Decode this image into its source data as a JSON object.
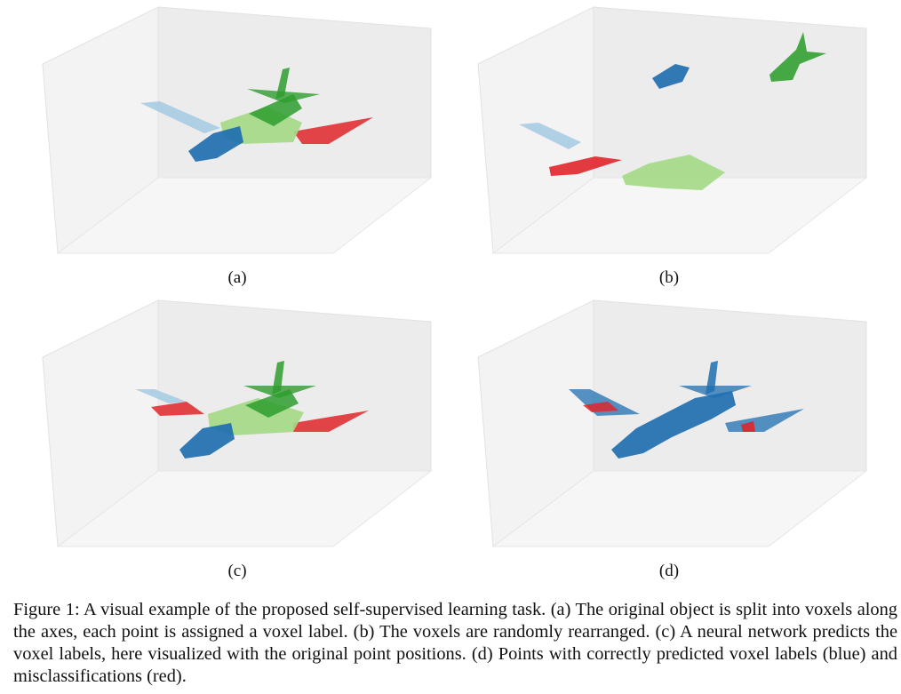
{
  "figure": {
    "panels": [
      {
        "id": "a",
        "label": "(a)",
        "variant": "original"
      },
      {
        "id": "b",
        "label": "(b)",
        "variant": "rearranged"
      },
      {
        "id": "c",
        "label": "(c)",
        "variant": "predicted"
      },
      {
        "id": "d",
        "label": "(d)",
        "variant": "evaluation"
      }
    ],
    "caption": "Figure 1: A visual example of the proposed self-supervised learning task. (a) The original object is split into voxels along the axes, each point is assigned a voxel label. (b) The voxels are randomly rearranged. (c) A neural network predicts the voxel labels, here visualized with the original point positions. (d) Points with correctly predicted voxel labels (blue) and misclassifications (red).",
    "colors": {
      "dark_blue": "#1f6fb0",
      "light_blue": "#a9cce3",
      "dark_green": "#2e9e2e",
      "light_green": "#a4d985",
      "red": "#e0262a",
      "pane_back": "#ececec",
      "pane_side": "#f3f3f3",
      "pane_floor": "#f6f6f6"
    }
  }
}
